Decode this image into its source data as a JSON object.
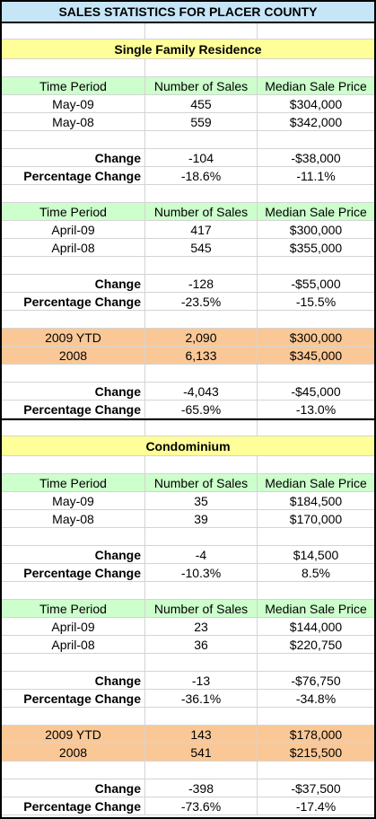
{
  "title": "SALES STATISTICS FOR PLACER COUNTY",
  "headers": {
    "period": "Time Period",
    "sales": "Number of Sales",
    "price": "Median Sale Price"
  },
  "change_label": "Change",
  "pct_label": "Percentage Change",
  "sfr": {
    "title": "Single Family Residence",
    "month": {
      "rows": [
        {
          "period": "May-09",
          "sales": "455",
          "price": "$304,000"
        },
        {
          "period": "May-08",
          "sales": "559",
          "price": "$342,000"
        }
      ],
      "change": {
        "sales": "-104",
        "price": "-$38,000"
      },
      "pct": {
        "sales": "-18.6%",
        "price": "-11.1%"
      }
    },
    "prev": {
      "rows": [
        {
          "period": "April-09",
          "sales": "417",
          "price": "$300,000"
        },
        {
          "period": "April-08",
          "sales": "545",
          "price": "$355,000"
        }
      ],
      "change": {
        "sales": "-128",
        "price": "-$55,000"
      },
      "pct": {
        "sales": "-23.5%",
        "price": "-15.5%"
      }
    },
    "ytd": {
      "rows": [
        {
          "period": "2009 YTD",
          "sales": "2,090",
          "price": "$300,000"
        },
        {
          "period": "2008",
          "sales": "6,133",
          "price": "$345,000"
        }
      ],
      "change": {
        "sales": "-4,043",
        "price": "-$45,000"
      },
      "pct": {
        "sales": "-65.9%",
        "price": "-13.0%"
      }
    }
  },
  "condo": {
    "title": "Condominium",
    "month": {
      "rows": [
        {
          "period": "May-09",
          "sales": "35",
          "price": "$184,500"
        },
        {
          "period": "May-08",
          "sales": "39",
          "price": "$170,000"
        }
      ],
      "change": {
        "sales": "-4",
        "price": "$14,500"
      },
      "pct": {
        "sales": "-10.3%",
        "price": "8.5%"
      }
    },
    "prev": {
      "rows": [
        {
          "period": "April-09",
          "sales": "23",
          "price": "$144,000"
        },
        {
          "period": "April-08",
          "sales": "36",
          "price": "$220,750"
        }
      ],
      "change": {
        "sales": "-13",
        "price": "-$76,750"
      },
      "pct": {
        "sales": "-36.1%",
        "price": "-34.8%"
      }
    },
    "ytd": {
      "rows": [
        {
          "period": "2009 YTD",
          "sales": "143",
          "price": "$178,000"
        },
        {
          "period": "2008",
          "sales": "541",
          "price": "$215,500"
        }
      ],
      "change": {
        "sales": "-398",
        "price": "-$37,500"
      },
      "pct": {
        "sales": "-73.6%",
        "price": "-17.4%"
      }
    }
  }
}
